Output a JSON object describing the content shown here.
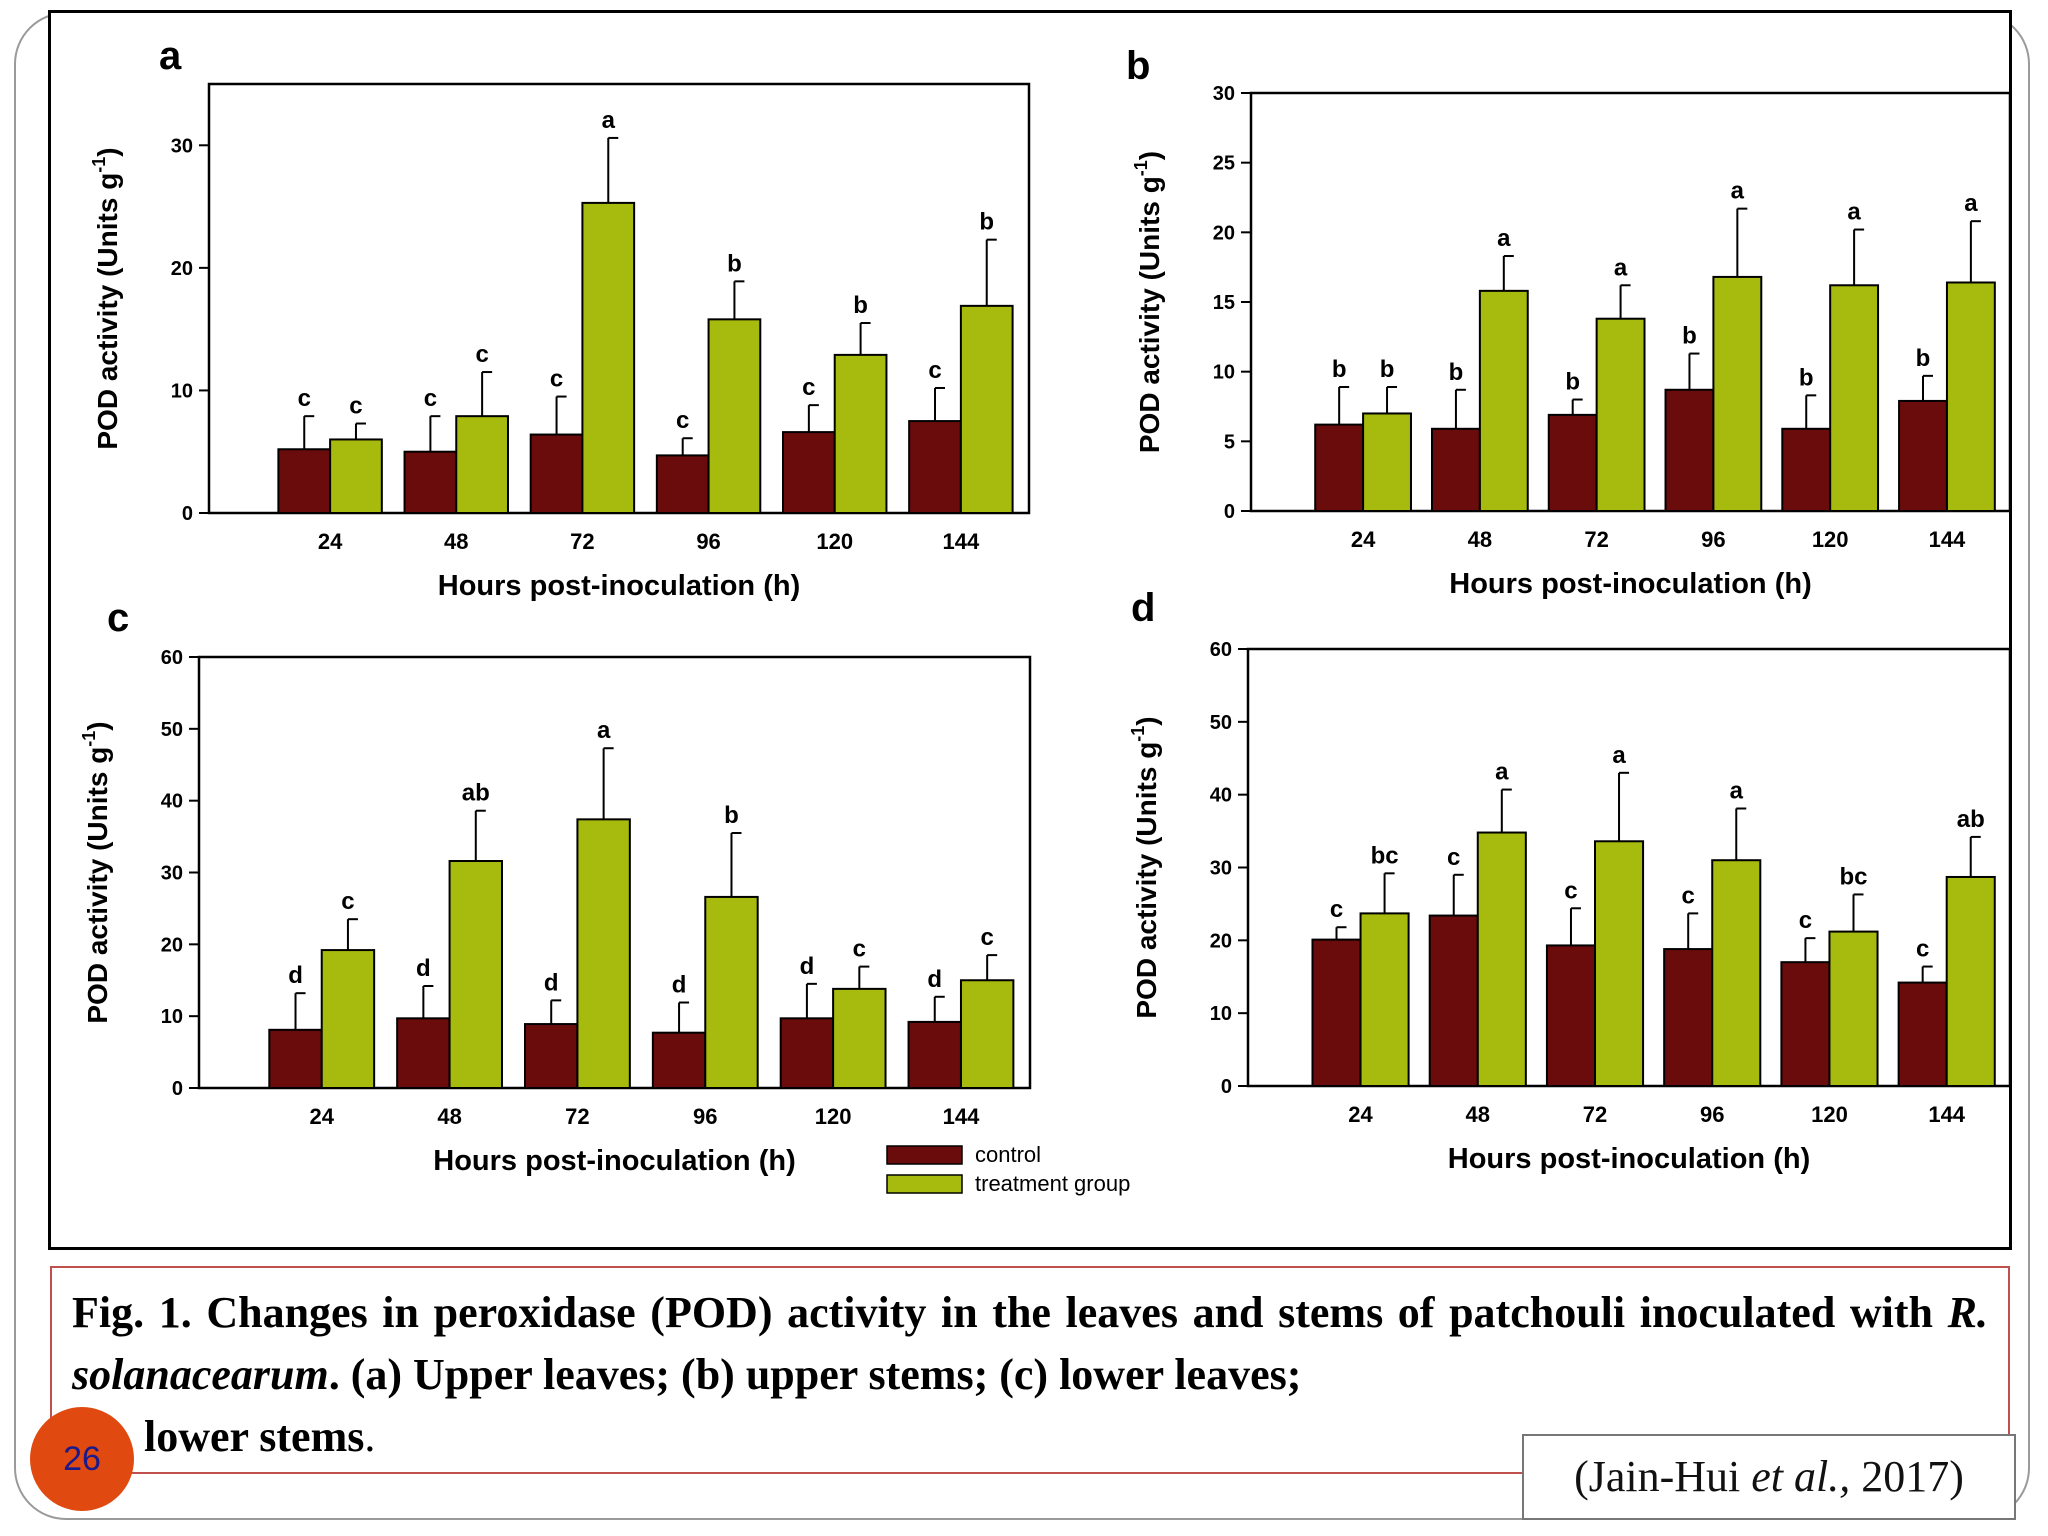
{
  "colors": {
    "control": "#6b0c0c",
    "treatment": "#a7bb0f",
    "caption_border": "#c0504d",
    "slide_number_bg": "#e04a10"
  },
  "legend": {
    "control": "control",
    "treatment": "treatment group"
  },
  "caption": {
    "fig": "Fig. 1.",
    "part1": "Changes in peroxidase (POD) activity in the leaves and stems of patchouli inoculated with",
    "species": "R. solanacearum",
    "part2": ". (a) Upper leaves; (b) upper stems; (c) lower leaves;",
    "part3": "lower stems",
    "end": "."
  },
  "slide_number": "26",
  "citation": {
    "authors": "(Jain-Hui",
    "etal": "et al.,",
    "year": "2017)"
  },
  "chart_data": [
    {
      "type": "bar",
      "panel": "a",
      "xlabel": "Hours post-inoculation (h)",
      "ylabel": "POD activity (Units g-1)",
      "categories": [
        "24",
        "48",
        "72",
        "96",
        "120",
        "144"
      ],
      "ylim": [
        0,
        35
      ],
      "yticks": [
        0,
        10,
        20,
        30
      ],
      "series": [
        {
          "name": "control",
          "values": [
            5.2,
            5.0,
            6.4,
            4.7,
            6.6,
            7.5
          ],
          "errors": [
            2.7,
            2.9,
            3.1,
            1.4,
            2.2,
            2.7
          ],
          "letters": [
            "c",
            "c",
            "c",
            "c",
            "c",
            "c"
          ]
        },
        {
          "name": "treatment group",
          "values": [
            6.0,
            7.9,
            25.3,
            15.8,
            12.9,
            16.9
          ],
          "errors": [
            1.3,
            3.6,
            5.3,
            3.1,
            2.6,
            5.4
          ],
          "letters": [
            "c",
            "c",
            "a",
            "b",
            "b",
            "b"
          ]
        }
      ]
    },
    {
      "type": "bar",
      "panel": "b",
      "xlabel": "Hours post-inoculation (h)",
      "ylabel": "POD activity (Units g-1)",
      "categories": [
        "24",
        "48",
        "72",
        "96",
        "120",
        "144"
      ],
      "ylim": [
        0,
        30
      ],
      "yticks": [
        0,
        5,
        10,
        15,
        20,
        25,
        30
      ],
      "series": [
        {
          "name": "control",
          "values": [
            6.2,
            5.9,
            6.9,
            8.7,
            5.9,
            7.9
          ],
          "errors": [
            2.7,
            2.8,
            1.1,
            2.6,
            2.4,
            1.8
          ],
          "letters": [
            "b",
            "b",
            "b",
            "b",
            "b",
            "b"
          ]
        },
        {
          "name": "treatment group",
          "values": [
            7.0,
            15.8,
            13.8,
            16.8,
            16.2,
            16.4
          ],
          "errors": [
            1.9,
            2.5,
            2.4,
            4.9,
            4.0,
            4.4
          ],
          "letters": [
            "b",
            "a",
            "a",
            "a",
            "a",
            "a"
          ]
        }
      ]
    },
    {
      "type": "bar",
      "panel": "c",
      "xlabel": "Hours post-inoculation (h)",
      "ylabel": "POD activity (Units g-1)",
      "categories": [
        "24",
        "48",
        "72",
        "96",
        "120",
        "144"
      ],
      "ylim": [
        0,
        60
      ],
      "yticks": [
        0,
        10,
        20,
        30,
        40,
        50,
        60
      ],
      "series": [
        {
          "name": "control",
          "values": [
            8.1,
            9.7,
            8.9,
            7.7,
            9.7,
            9.2
          ],
          "errors": [
            5.1,
            4.5,
            3.3,
            4.2,
            4.8,
            3.5
          ],
          "letters": [
            "d",
            "d",
            "d",
            "d",
            "d",
            "d"
          ]
        },
        {
          "name": "treatment group",
          "values": [
            19.2,
            31.6,
            37.4,
            26.6,
            13.8,
            15.0
          ],
          "errors": [
            4.3,
            7.0,
            9.9,
            8.9,
            3.1,
            3.5
          ],
          "letters": [
            "c",
            "ab",
            "a",
            "b",
            "c",
            "c"
          ]
        }
      ]
    },
    {
      "type": "bar",
      "panel": "d",
      "xlabel": "Hours post-inoculation (h)",
      "ylabel": "POD activity (Units g-1)",
      "categories": [
        "24",
        "48",
        "72",
        "96",
        "120",
        "144"
      ],
      "ylim": [
        0,
        60
      ],
      "yticks": [
        0,
        10,
        20,
        30,
        40,
        50,
        60
      ],
      "series": [
        {
          "name": "control",
          "values": [
            20.1,
            23.4,
            19.3,
            18.8,
            17.0,
            14.2
          ],
          "errors": [
            1.7,
            5.6,
            5.1,
            4.9,
            3.3,
            2.2
          ],
          "letters": [
            "c",
            "c",
            "c",
            "c",
            "c",
            "c"
          ]
        },
        {
          "name": "treatment group",
          "values": [
            23.7,
            34.8,
            33.6,
            31.0,
            21.2,
            28.7
          ],
          "errors": [
            5.5,
            5.9,
            9.4,
            7.1,
            5.1,
            5.5
          ],
          "letters": [
            "bc",
            "a",
            "a",
            "a",
            "bc",
            "ab"
          ]
        }
      ]
    }
  ]
}
